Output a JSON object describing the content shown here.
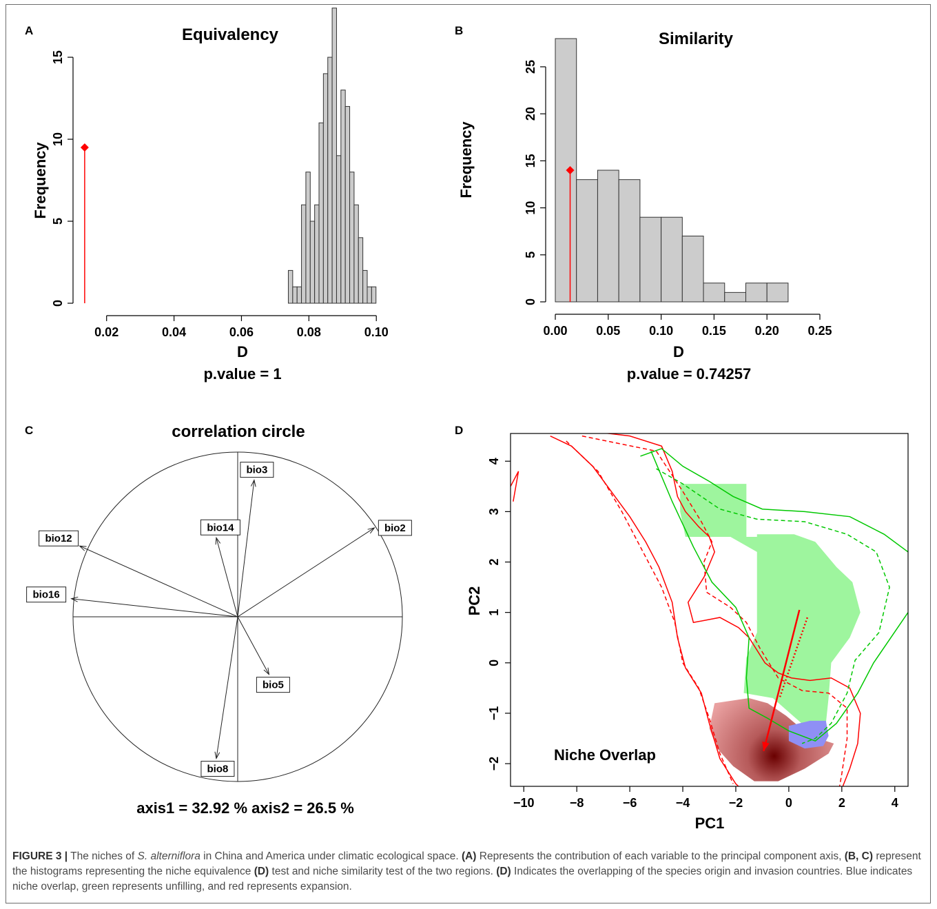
{
  "panels": {
    "A": {
      "letter": "A"
    },
    "B": {
      "letter": "B"
    },
    "C": {
      "letter": "C"
    },
    "D": {
      "letter": "D"
    }
  },
  "chart_data": [
    {
      "id": "A",
      "type": "bar",
      "title": "Equivalency",
      "xlabel": "D",
      "ylabel": "Frequency",
      "subtitle": "p.value =  1",
      "xlim": [
        0.0125,
        0.102
      ],
      "ylim": [
        0,
        16.6
      ],
      "xticks": [
        0.02,
        0.04,
        0.06,
        0.08,
        0.1
      ],
      "xtick_labels": [
        "0.02",
        "0.04",
        "0.06",
        "0.08",
        "0.10"
      ],
      "yticks": [
        0,
        5,
        10,
        15
      ],
      "ytick_labels": [
        "0",
        "5",
        "10",
        "15"
      ],
      "bin_width": 0.0013,
      "bins": [
        {
          "x0": 0.0739,
          "value": 2
        },
        {
          "x0": 0.0752,
          "value": 1
        },
        {
          "x0": 0.0765,
          "value": 1
        },
        {
          "x0": 0.0778,
          "value": 6
        },
        {
          "x0": 0.0791,
          "value": 8
        },
        {
          "x0": 0.0804,
          "value": 5
        },
        {
          "x0": 0.0817,
          "value": 6
        },
        {
          "x0": 0.083,
          "value": 11
        },
        {
          "x0": 0.0843,
          "value": 14
        },
        {
          "x0": 0.0856,
          "value": 15
        },
        {
          "x0": 0.0869,
          "value": 18
        },
        {
          "x0": 0.0882,
          "value": 9
        },
        {
          "x0": 0.0895,
          "value": 13
        },
        {
          "x0": 0.0908,
          "value": 12
        },
        {
          "x0": 0.0921,
          "value": 8
        },
        {
          "x0": 0.0934,
          "value": 6
        },
        {
          "x0": 0.0947,
          "value": 4
        },
        {
          "x0": 0.096,
          "value": 2
        },
        {
          "x0": 0.0973,
          "value": 1
        },
        {
          "x0": 0.0986,
          "value": 1
        }
      ],
      "observed": {
        "x": 0.0135,
        "y": 9.5
      },
      "colors": {
        "bar": "#cccccc",
        "observed": "#ff0000"
      }
    },
    {
      "id": "B",
      "type": "bar",
      "title": "Similarity",
      "xlabel": "D",
      "ylabel": "Frequency",
      "subtitle": "p.value =  0.74257",
      "xlim": [
        0.0,
        0.25
      ],
      "ylim": [
        0,
        28
      ],
      "xticks": [
        0.0,
        0.05,
        0.1,
        0.15,
        0.2,
        0.25
      ],
      "xtick_labels": [
        "0.00",
        "0.05",
        "0.10",
        "0.15",
        "0.20",
        "0.25"
      ],
      "yticks": [
        0,
        5,
        10,
        15,
        20,
        25
      ],
      "ytick_labels": [
        "0",
        "5",
        "10",
        "15",
        "20",
        "25"
      ],
      "bin_width": 0.02,
      "bins": [
        {
          "x0": 0.0,
          "value": 28
        },
        {
          "x0": 0.02,
          "value": 13
        },
        {
          "x0": 0.04,
          "value": 14
        },
        {
          "x0": 0.06,
          "value": 13
        },
        {
          "x0": 0.08,
          "value": 9
        },
        {
          "x0": 0.1,
          "value": 9
        },
        {
          "x0": 0.12,
          "value": 7
        },
        {
          "x0": 0.14,
          "value": 2
        },
        {
          "x0": 0.16,
          "value": 1
        },
        {
          "x0": 0.18,
          "value": 2
        },
        {
          "x0": 0.2,
          "value": 2
        }
      ],
      "observed": {
        "x": 0.014,
        "y": 14
      },
      "colors": {
        "bar": "#cccccc",
        "observed": "#ff0000"
      }
    },
    {
      "id": "C",
      "type": "scatter",
      "title": "correlation circle",
      "subtitle": "axis1 = 32.92 %  axis2 = 26.5 %",
      "xlim": [
        -1,
        1
      ],
      "ylim": [
        -1,
        1
      ],
      "vectors": [
        {
          "name": "bio3",
          "x": 0.1,
          "y": 0.83
        },
        {
          "name": "bio14",
          "x": -0.13,
          "y": 0.48
        },
        {
          "name": "bio2",
          "x": 0.83,
          "y": 0.54
        },
        {
          "name": "bio12",
          "x": -0.96,
          "y": 0.43
        },
        {
          "name": "bio16",
          "x": -1.01,
          "y": 0.11
        },
        {
          "name": "bio5",
          "x": 0.19,
          "y": -0.35
        },
        {
          "name": "bio8",
          "x": -0.13,
          "y": -0.86
        }
      ]
    },
    {
      "id": "D",
      "type": "area",
      "title": "Niche Overlap",
      "xlabel": "PC1",
      "ylabel": "PC2",
      "xlim": [
        -10.5,
        4.5
      ],
      "ylim": [
        -2.45,
        4.55
      ],
      "xticks": [
        -10,
        -8,
        -6,
        -4,
        -2,
        0,
        2,
        4
      ],
      "xtick_labels": [
        "−10",
        "−8",
        "−6",
        "−4",
        "−2",
        "0",
        "2",
        "4"
      ],
      "yticks": [
        -2,
        -1,
        0,
        1,
        2,
        3,
        4
      ],
      "ytick_labels": [
        "−2",
        "−1",
        "0",
        "1",
        "2",
        "3",
        "4"
      ],
      "colors": {
        "unfilling": "#9ef59e",
        "overlap": "#8f8ff5",
        "expansion": "#e9a0a0",
        "expansion_core": "#6a0000",
        "native_contour": "#ff0000",
        "invasive_contour": "#00c800",
        "arrow": "#ff0000"
      },
      "unfilling_polygon": [
        [
          -4.1,
          3.55
        ],
        [
          -1.6,
          3.55
        ],
        [
          -1.6,
          2.5
        ],
        [
          -1.2,
          2.5
        ],
        [
          -1.2,
          2.55
        ],
        [
          0.2,
          2.55
        ],
        [
          1.0,
          2.4
        ],
        [
          1.8,
          1.9
        ],
        [
          2.4,
          1.6
        ],
        [
          2.7,
          1.0
        ],
        [
          2.3,
          0.5
        ],
        [
          1.6,
          0.0
        ],
        [
          1.5,
          -0.7
        ],
        [
          1.4,
          -1.2
        ],
        [
          0.7,
          -1.3
        ],
        [
          -0.6,
          -0.7
        ],
        [
          -1.7,
          -0.6
        ],
        [
          -1.6,
          0.1
        ],
        [
          -1.2,
          0.6
        ],
        [
          -1.2,
          2.2
        ],
        [
          -2.2,
          2.5
        ],
        [
          -3.9,
          2.5
        ],
        [
          -4.1,
          3.0
        ]
      ],
      "overlap_polygon": [
        [
          0.0,
          -1.25
        ],
        [
          0.8,
          -1.15
        ],
        [
          1.4,
          -1.15
        ],
        [
          1.5,
          -1.45
        ],
        [
          1.3,
          -1.65
        ],
        [
          0.6,
          -1.7
        ],
        [
          0.0,
          -1.55
        ]
      ],
      "expansion_polygon": [
        [
          -2.8,
          -0.8
        ],
        [
          -1.5,
          -0.7
        ],
        [
          -0.8,
          -0.8
        ],
        [
          -0.1,
          -1.05
        ],
        [
          0.8,
          -1.45
        ],
        [
          1.7,
          -1.6
        ],
        [
          1.5,
          -1.8
        ],
        [
          0.6,
          -2.1
        ],
        [
          -0.4,
          -2.35
        ],
        [
          -1.3,
          -2.35
        ],
        [
          -2.1,
          -2.05
        ],
        [
          -2.7,
          -1.7
        ],
        [
          -3.0,
          -1.3
        ]
      ],
      "expansion_core": {
        "x": -0.55,
        "y": -1.85
      },
      "native_outer": [
        [
          -8.7,
          4.6
        ],
        [
          -7.6,
          4.6
        ],
        [
          -6.0,
          4.5
        ],
        [
          -4.8,
          4.3
        ],
        [
          -4.6,
          4.05
        ],
        [
          -4.4,
          3.8
        ],
        [
          -4.2,
          3.3
        ],
        [
          -3.9,
          3.0
        ],
        [
          -3.4,
          2.7
        ],
        [
          -3.0,
          2.5
        ],
        [
          -2.8,
          2.2
        ],
        [
          -3.2,
          1.7
        ],
        [
          -3.8,
          1.2
        ],
        [
          -3.6,
          0.8
        ],
        [
          -2.6,
          0.9
        ],
        [
          -1.9,
          0.7
        ],
        [
          -1.5,
          0.5
        ],
        [
          -0.9,
          0.0
        ],
        [
          -0.4,
          -0.2
        ],
        [
          0.1,
          -0.3
        ],
        [
          0.8,
          -0.35
        ],
        [
          1.6,
          -0.3
        ],
        [
          2.3,
          -0.5
        ],
        [
          2.7,
          -1.0
        ],
        [
          2.6,
          -1.6
        ],
        [
          2.3,
          -2.1
        ],
        [
          2.0,
          -2.5
        ]
      ],
      "native_dashed": [
        [
          -7.8,
          4.5
        ],
        [
          -5.0,
          4.2
        ],
        [
          -4.0,
          3.4
        ],
        [
          -3.3,
          2.8
        ],
        [
          -2.9,
          2.4
        ],
        [
          -3.2,
          2.0
        ],
        [
          -3.1,
          1.4
        ],
        [
          -2.2,
          1.1
        ],
        [
          -1.6,
          0.8
        ],
        [
          -1.1,
          0.3
        ],
        [
          -0.4,
          -0.3
        ],
        [
          0.5,
          -0.55
        ],
        [
          1.5,
          -0.6
        ],
        [
          2.2,
          -0.9
        ],
        [
          2.2,
          -1.5
        ],
        [
          2.0,
          -2.2
        ],
        [
          1.9,
          -2.5
        ]
      ],
      "native_inner": [
        [
          -10.5,
          3.5
        ],
        [
          -10.2,
          3.8
        ],
        [
          -10.4,
          3.2
        ]
      ],
      "native_left": [
        [
          -9.0,
          4.5
        ],
        [
          -8.2,
          4.3
        ],
        [
          -7.4,
          3.9
        ],
        [
          -6.7,
          3.4
        ],
        [
          -6.0,
          2.9
        ],
        [
          -5.4,
          2.4
        ],
        [
          -4.9,
          1.9
        ],
        [
          -4.4,
          1.2
        ],
        [
          -4.2,
          0.5
        ],
        [
          -3.9,
          -0.1
        ],
        [
          -3.3,
          -0.6
        ],
        [
          -3.0,
          -1.2
        ],
        [
          -2.6,
          -1.9
        ],
        [
          -2.0,
          -2.4
        ],
        [
          -1.8,
          -2.5
        ]
      ],
      "native_left_dashed": [
        [
          -8.4,
          4.4
        ],
        [
          -7.2,
          3.8
        ],
        [
          -6.3,
          3.0
        ],
        [
          -5.5,
          2.2
        ],
        [
          -4.8,
          1.5
        ],
        [
          -4.3,
          0.8
        ],
        [
          -4.0,
          0.0
        ],
        [
          -3.4,
          -0.5
        ],
        [
          -3.0,
          -1.1
        ],
        [
          -2.6,
          -1.8
        ],
        [
          -2.1,
          -2.4
        ]
      ],
      "invasive_outer": [
        [
          -5.6,
          4.1
        ],
        [
          -4.8,
          4.25
        ],
        [
          -4.0,
          3.9
        ],
        [
          -3.0,
          3.6
        ],
        [
          -2.1,
          3.3
        ],
        [
          -1.0,
          3.05
        ],
        [
          0.6,
          3.0
        ],
        [
          2.3,
          2.9
        ],
        [
          3.6,
          2.55
        ],
        [
          4.5,
          2.2
        ]
      ],
      "invasive_dashed": [
        [
          -5.0,
          3.85
        ],
        [
          -4.0,
          3.55
        ],
        [
          -2.6,
          3.05
        ],
        [
          -1.2,
          2.85
        ],
        [
          0.6,
          2.8
        ],
        [
          2.2,
          2.55
        ],
        [
          3.3,
          2.2
        ],
        [
          3.8,
          1.5
        ],
        [
          3.4,
          0.6
        ],
        [
          2.5,
          0.05
        ],
        [
          2.2,
          -0.6
        ],
        [
          1.6,
          -1.2
        ],
        [
          1.0,
          -1.5
        ],
        [
          0.5,
          -1.6
        ]
      ],
      "invasive_inner": [
        [
          -5.2,
          4.2
        ],
        [
          -4.4,
          3.2
        ],
        [
          -3.6,
          2.3
        ],
        [
          -2.9,
          1.6
        ],
        [
          -2.0,
          1.1
        ],
        [
          -1.5,
          0.5
        ],
        [
          -1.6,
          -0.3
        ],
        [
          -1.5,
          -0.9
        ],
        [
          -0.8,
          -1.1
        ],
        [
          0.0,
          -1.35
        ],
        [
          1.0,
          -1.55
        ],
        [
          1.8,
          -1.2
        ],
        [
          2.6,
          -0.6
        ],
        [
          3.2,
          0.0
        ],
        [
          4.5,
          1.0
        ]
      ],
      "arrow": {
        "x0": 0.4,
        "y0": 1.05,
        "x1": -0.95,
        "y1": -1.75
      },
      "arrow_dotted": {
        "x0": 0.7,
        "y0": 0.9,
        "x1": -0.35,
        "y1": -0.7
      }
    }
  ],
  "caption": {
    "figure_label": "FIGURE 3 |",
    "part1": " The niches of ",
    "species": "S. alterniflora",
    "part2": " in China and America under climatic ecological space. ",
    "a": "(A)",
    "part3": " Represents the contribution of each variable to the principal component axis, ",
    "bc": "(B, C)",
    "part4": " represent the histograms representing the niche equivalence ",
    "d1": "(D)",
    "part5": " test and niche similarity test of the two regions. ",
    "d2": "(D)",
    "part6": " Indicates the overlapping of the species origin and invasion countries. Blue indicates niche overlap, green represents unfilling, and red represents expansion."
  }
}
